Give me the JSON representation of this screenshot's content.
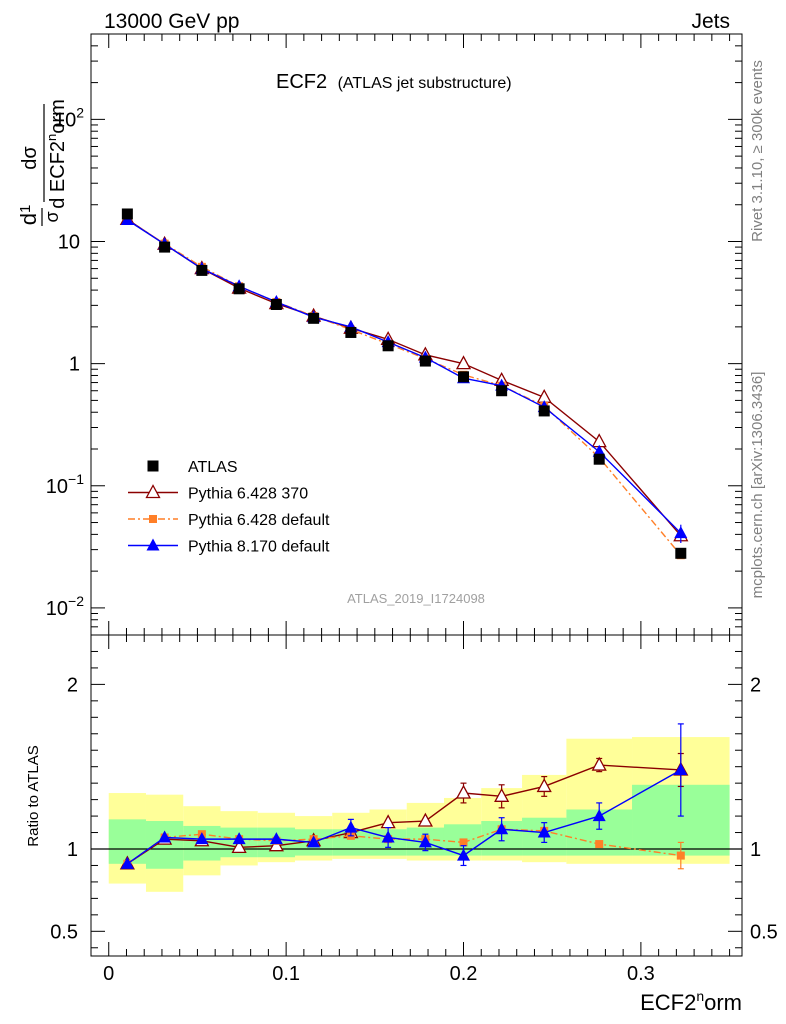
{
  "header": {
    "left": "13000 GeV pp",
    "right": "Jets"
  },
  "plot": {
    "title_main": "ECF2",
    "title_sub": "(ATLAS jet substructure)",
    "watermark": "ATLAS_2019_I1724098",
    "side_rivet": "Rivet 3.1.10, ≥ 300k events",
    "side_mcplots": "mcplots.cern.ch [arXiv:1306.3436]"
  },
  "chart_data": [
    {
      "type": "line",
      "panel": "main",
      "ylabel": "1/σ dσ/d ECF2norm",
      "yscale": "log",
      "ylim": [
        0.006,
        500
      ],
      "xlim": [
        -0.01,
        0.357
      ],
      "y_tick_labels": [
        {
          "value": 0.01,
          "base": "10",
          "exp": "−2"
        },
        {
          "value": 0.1,
          "base": "10",
          "exp": "−1"
        },
        {
          "value": 1,
          "base": "1",
          "exp": ""
        },
        {
          "value": 10,
          "base": "10",
          "exp": ""
        },
        {
          "value": 100,
          "base": "10",
          "exp": "2"
        }
      ],
      "x": [
        0.0105,
        0.0315,
        0.0525,
        0.0735,
        0.0945,
        0.1155,
        0.1365,
        0.1575,
        0.1785,
        0.2,
        0.2215,
        0.2455,
        0.2765,
        0.3225
      ],
      "legend_placement": "bottom-left",
      "series": [
        {
          "name": "ATLAS",
          "color": "#000000",
          "marker": "square",
          "values": [
            16.8,
            9.0,
            5.8,
            4.1,
            3.05,
            2.35,
            1.8,
            1.4,
            1.05,
            0.78,
            0.6,
            0.41,
            0.165,
            0.028
          ]
        },
        {
          "name": "Pythia 6.428 370",
          "color": "#8b0000",
          "marker": "open-triangle",
          "values": [
            15.2,
            9.5,
            6.0,
            4.15,
            3.1,
            2.45,
            1.95,
            1.58,
            1.18,
            1.0,
            0.73,
            0.53,
            0.23,
            0.039
          ]
        },
        {
          "name": "Pythia 6.428 default",
          "color": "#ff7f27",
          "marker": "small-square",
          "dashed": true,
          "values": [
            15.0,
            9.6,
            6.2,
            4.3,
            3.2,
            2.45,
            1.9,
            1.45,
            1.1,
            0.81,
            0.66,
            0.45,
            0.17,
            0.027
          ]
        },
        {
          "name": "Pythia 8.170 default",
          "color": "#0000ff",
          "marker": "triangle",
          "values": [
            15.0,
            9.5,
            6.0,
            4.3,
            3.2,
            2.4,
            2.0,
            1.5,
            1.12,
            0.76,
            0.66,
            0.44,
            0.19,
            0.041
          ]
        }
      ]
    },
    {
      "type": "line",
      "panel": "ratio",
      "ylabel": "Ratio to ATLAS",
      "ylim": [
        0.35,
        2.3
      ],
      "y_tick_labels": [
        0.5,
        1,
        2
      ],
      "xlabel": "ECF2norm",
      "x_tick_labels": [
        0,
        0.1,
        0.2,
        0.3
      ],
      "x": [
        0.0105,
        0.0315,
        0.0525,
        0.0735,
        0.0945,
        0.1155,
        0.1365,
        0.1575,
        0.1785,
        0.2,
        0.2215,
        0.2455,
        0.2765,
        0.3225
      ],
      "bin_edges": [
        0,
        0.021,
        0.042,
        0.063,
        0.084,
        0.105,
        0.126,
        0.147,
        0.168,
        0.189,
        0.21,
        0.233,
        0.258,
        0.295,
        0.35
      ],
      "band_inner": {
        "color": "#99ff99",
        "low": [
          0.91,
          0.88,
          0.93,
          0.95,
          0.95,
          0.96,
          0.96,
          0.96,
          0.96,
          0.96,
          0.96,
          0.96,
          0.96,
          0.96
        ],
        "high": [
          1.18,
          1.17,
          1.14,
          1.13,
          1.13,
          1.12,
          1.12,
          1.12,
          1.13,
          1.15,
          1.17,
          1.19,
          1.24,
          1.39
        ]
      },
      "band_outer": {
        "color": "#ffff99",
        "low": [
          0.79,
          0.74,
          0.84,
          0.9,
          0.92,
          0.93,
          0.94,
          0.94,
          0.93,
          0.93,
          0.93,
          0.92,
          0.91,
          0.91
        ],
        "high": [
          1.34,
          1.33,
          1.26,
          1.23,
          1.22,
          1.2,
          1.22,
          1.24,
          1.28,
          1.31,
          1.37,
          1.45,
          1.67,
          1.68
        ]
      },
      "series": [
        {
          "name": "Pythia 6.428 370",
          "color": "#8b0000",
          "marker": "open-triangle",
          "values": [
            0.91,
            1.06,
            1.05,
            1.01,
            1.02,
            1.05,
            1.1,
            1.16,
            1.17,
            1.34,
            1.32,
            1.38,
            1.51,
            1.48
          ]
        },
        {
          "name": "Pythia 6.428 default",
          "color": "#ff7f27",
          "marker": "small-square",
          "dashed": true,
          "values": [
            0.91,
            1.07,
            1.09,
            1.06,
            1.05,
            1.06,
            1.08,
            1.06,
            1.06,
            1.04,
            1.12,
            1.11,
            1.03,
            0.96
          ]
        },
        {
          "name": "Pythia 8.170 default",
          "color": "#0000ff",
          "marker": "triangle",
          "values": [
            0.91,
            1.07,
            1.06,
            1.06,
            1.06,
            1.04,
            1.13,
            1.07,
            1.04,
            0.96,
            1.12,
            1.1,
            1.2,
            1.48
          ]
        }
      ]
    }
  ]
}
